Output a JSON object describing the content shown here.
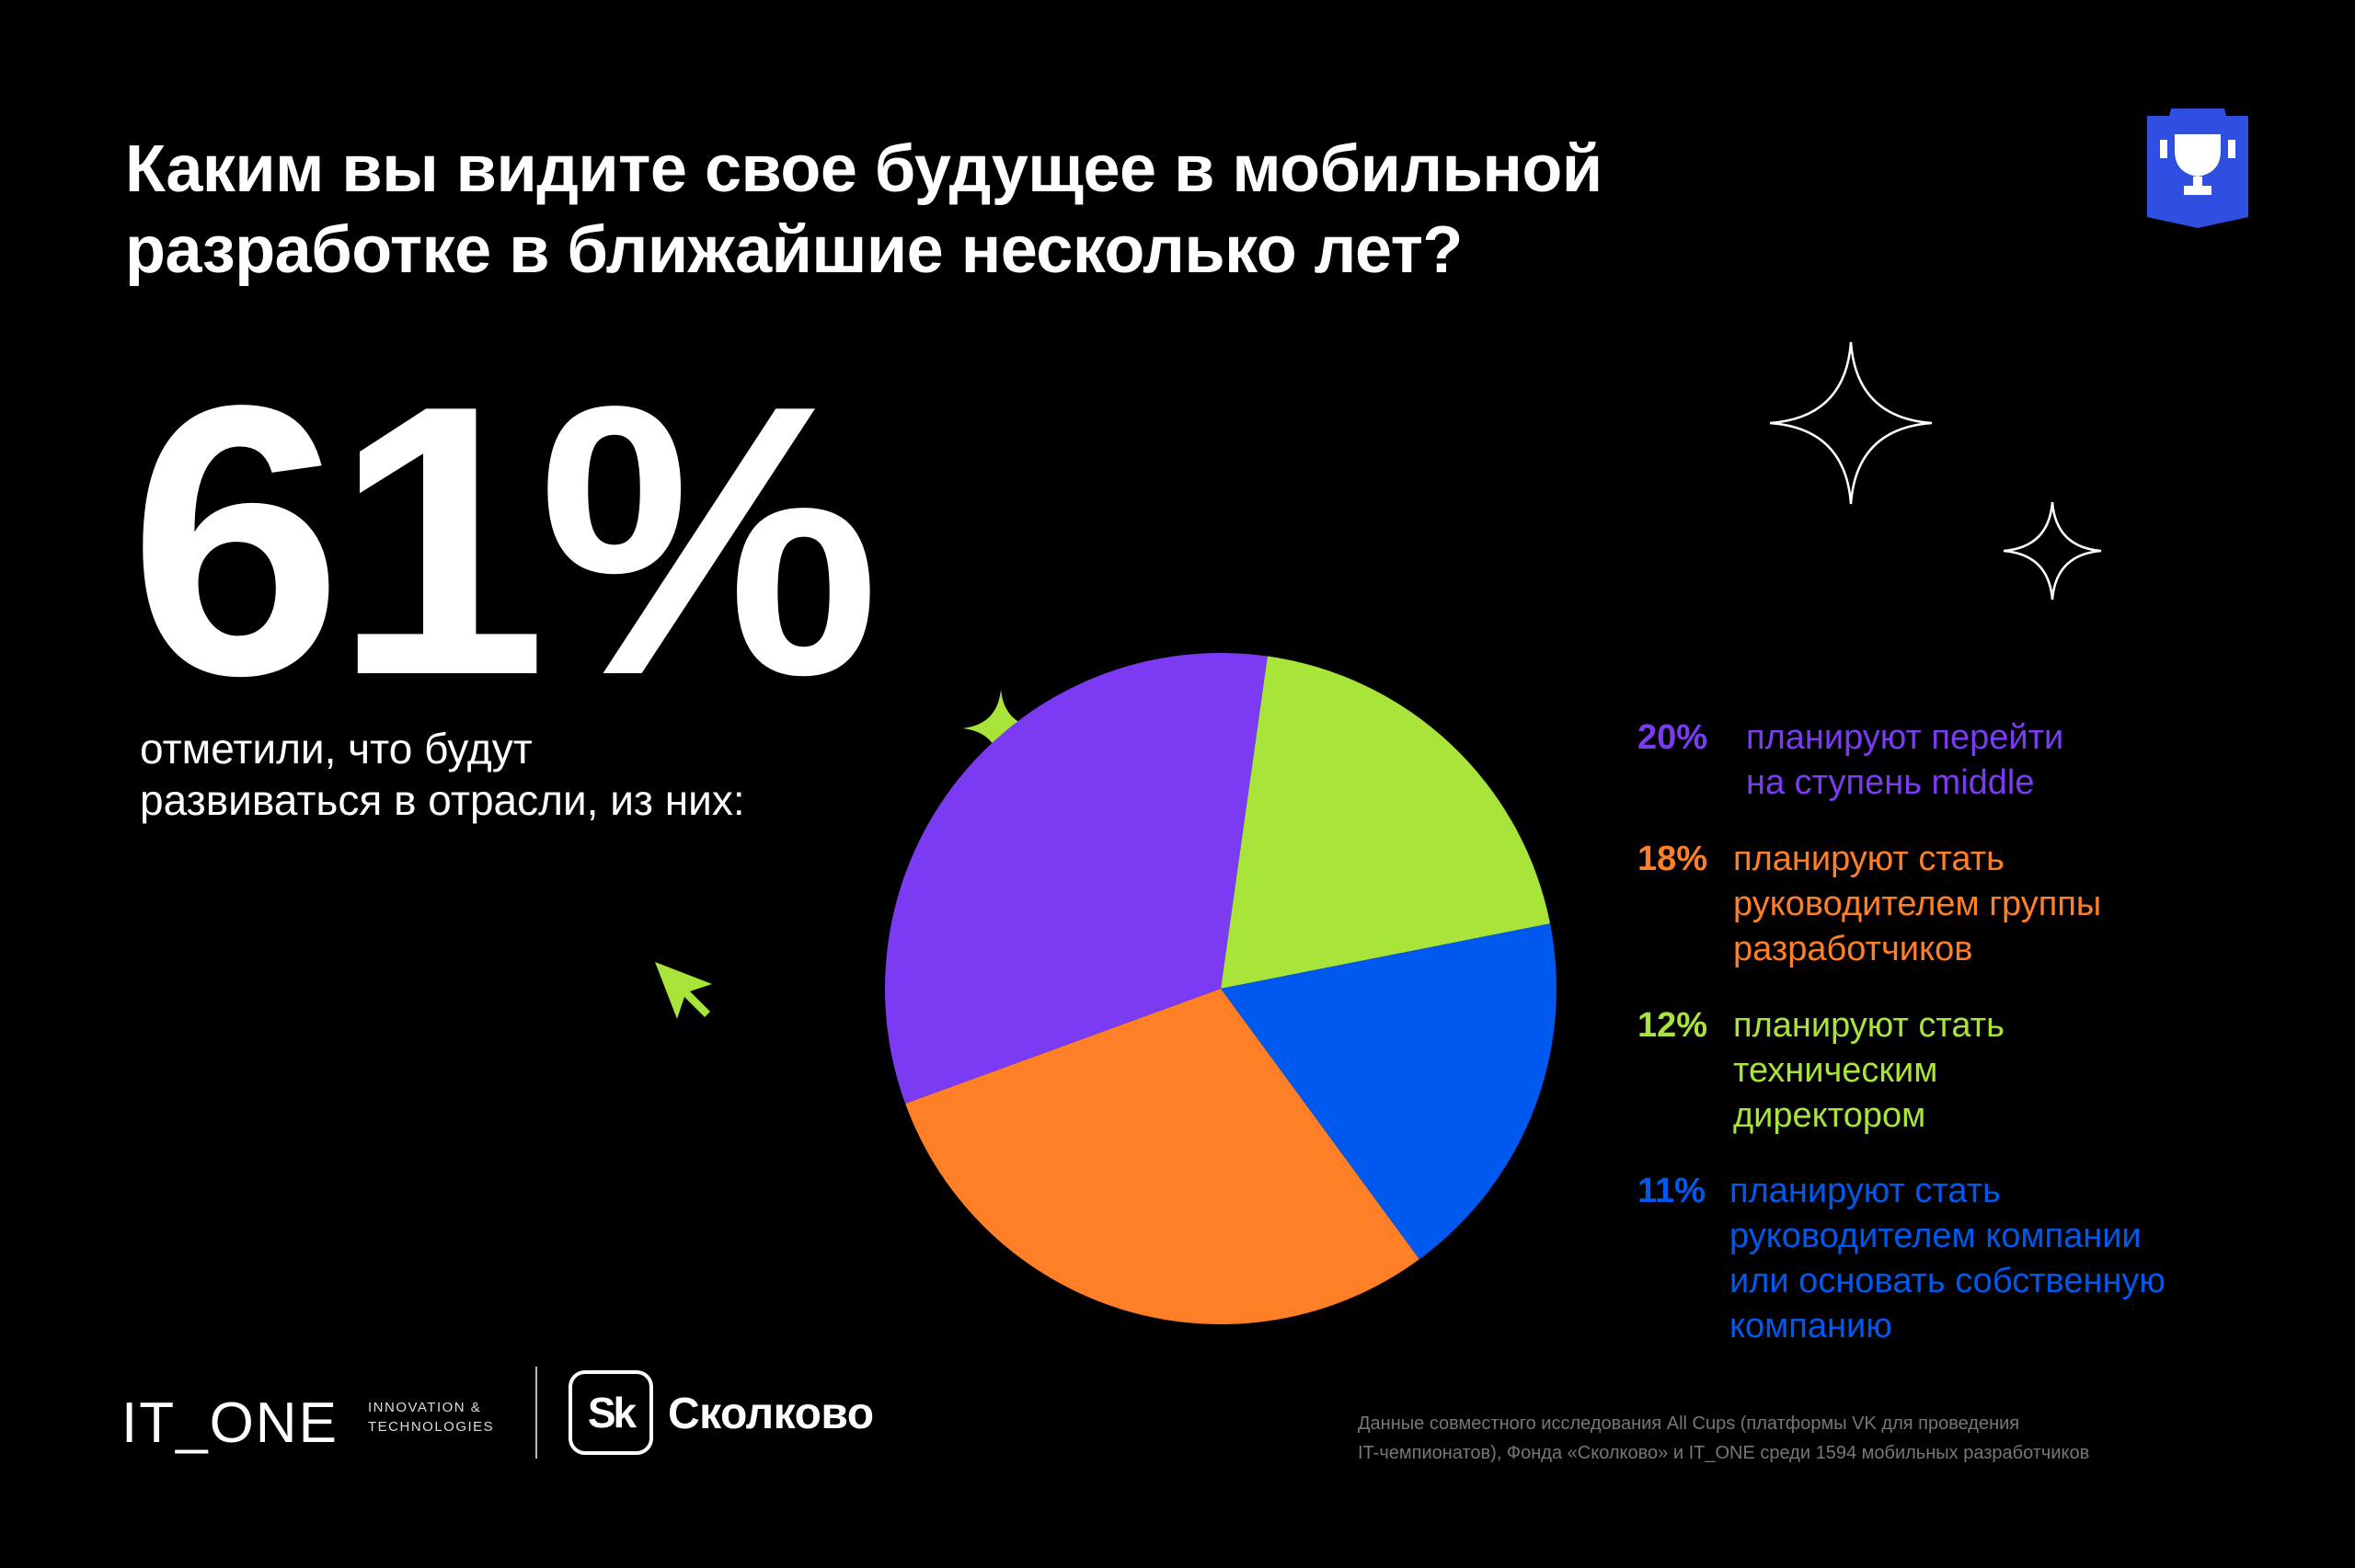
{
  "title_lines": [
    "Каким вы видите свое будущее в мобильной",
    "разработке в ближайшие несколько лет?"
  ],
  "big_stat": "61%",
  "big_caption_lines": [
    "отметили, что будут",
    "развиваться в отрасли, из них:"
  ],
  "colors": {
    "background": "#000000",
    "purple": "#7B3BF2",
    "orange": "#FF7F26",
    "lime": "#A9E43A",
    "blue": "#0059EE",
    "white": "#FFFFFF",
    "badge": "#2E4FE0"
  },
  "chart_data": {
    "type": "pie",
    "slices": [
      {
        "label": "планируют перейти на ступень middle",
        "value": 20,
        "value_label": "20%",
        "color": "#7B3BF2"
      },
      {
        "label": "планируют стать руководителем группы разработчиков",
        "value": 18,
        "value_label": "18%",
        "color": "#FF7F26"
      },
      {
        "label": "планируют стать техническим директором",
        "value": 12,
        "value_label": "12%",
        "color": "#A9E43A"
      },
      {
        "label": "планируют стать руководителем компании или основать собственную компанию",
        "value": 11,
        "value_label": "11%",
        "color": "#0059EE"
      }
    ],
    "legend_position": "right"
  },
  "legend": [
    {
      "pct": "20%",
      "lines": [
        "планируют перейти",
        "на ступень middle"
      ],
      "color": "#7B3BF2"
    },
    {
      "pct": "18%",
      "lines": [
        "планируют стать",
        "руководителем группы",
        "разработчиков"
      ],
      "color": "#FF7F26"
    },
    {
      "pct": "12%",
      "lines": [
        "планируют стать",
        "техническим",
        "директором"
      ],
      "color": "#A9E43A"
    },
    {
      "pct": "11%",
      "lines": [
        "планируют стать",
        "руководителем компании",
        "или основать собственную",
        "компанию"
      ],
      "color": "#0059EE"
    }
  ],
  "footer_note_lines": [
    "Данные совместного исследования All Cups (платформы VK для проведения",
    "IT-чемпионатов), Фонда «Сколково» и IT_ONE среди 1594 мобильных разработчиков"
  ],
  "logos": {
    "itone_wordmark": "IT_ONE",
    "itone_tagline": [
      "INNOVATION &",
      "TECHNOLOGIES"
    ],
    "sk_mark": "Sk",
    "sk_name": "Сколково"
  },
  "icons": [
    "trophy-badge-icon",
    "sparkle-icon",
    "cursor-arrow-icon"
  ]
}
